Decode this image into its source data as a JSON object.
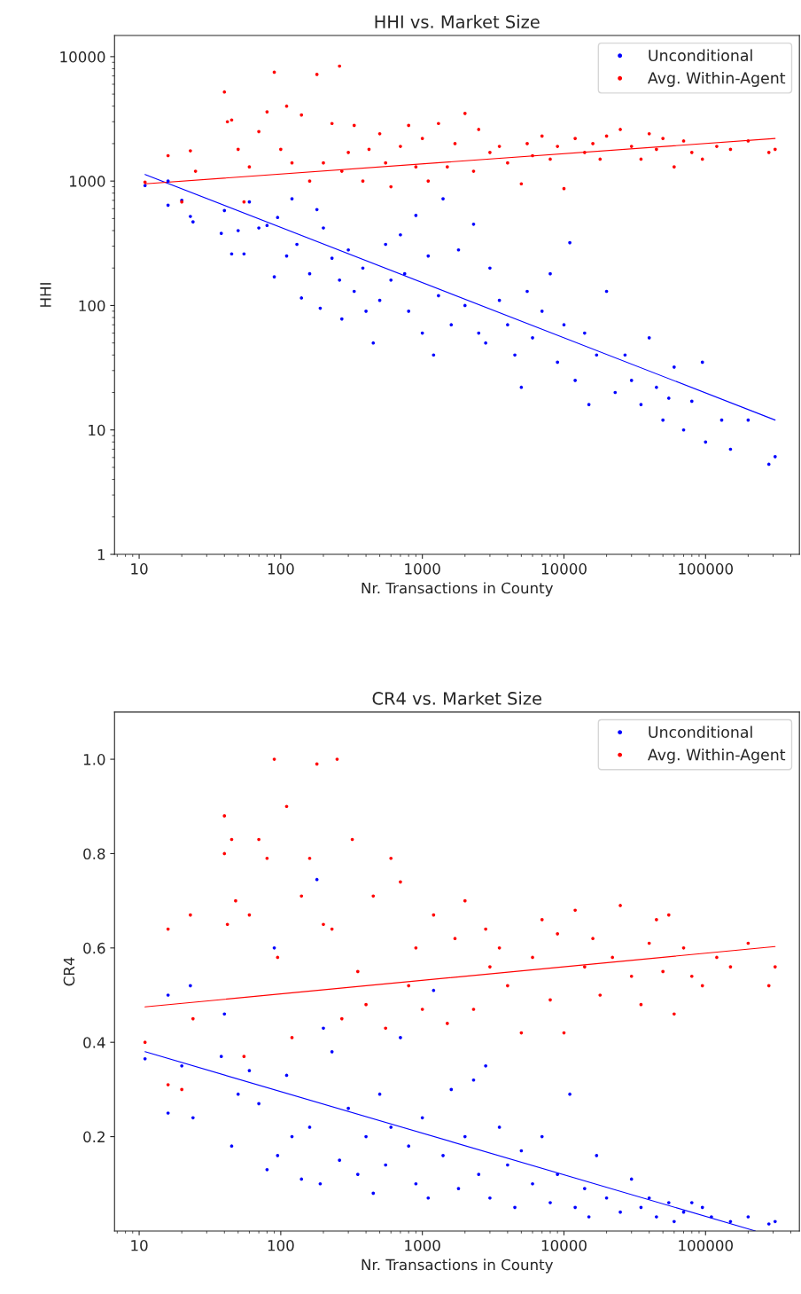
{
  "chart_data": [
    {
      "type": "scatter",
      "title": "HHI vs. Market Size",
      "xlabel": "Nr. Transactions in County",
      "ylabel": "HHI",
      "log": "xy",
      "xlim": [
        6.7,
        460000
      ],
      "ylim": [
        1,
        14800
      ],
      "xticks": [
        10,
        100,
        1000,
        10000,
        100000
      ],
      "yticks": [
        1,
        10,
        100,
        1000,
        10000
      ],
      "legend": "top right",
      "marker": "circle",
      "grid": false,
      "series": [
        {
          "name": "Unconditional",
          "color": "#0000ff",
          "x": [
            11,
            16,
            16,
            20,
            23,
            24,
            38,
            40,
            45,
            50,
            55,
            60,
            70,
            80,
            90,
            95,
            110,
            120,
            130,
            140,
            160,
            180,
            190,
            200,
            230,
            260,
            270,
            300,
            330,
            380,
            400,
            450,
            500,
            550,
            600,
            700,
            750,
            800,
            900,
            1000,
            1100,
            1200,
            1300,
            1400,
            1600,
            1800,
            2000,
            2300,
            2500,
            2800,
            3000,
            3500,
            4000,
            4500,
            5000,
            5500,
            6000,
            7000,
            8000,
            9000,
            10000,
            11000,
            12000,
            14000,
            15000,
            17000,
            20000,
            23000,
            27000,
            30000,
            35000,
            40000,
            45000,
            50000,
            55000,
            60000,
            70000,
            80000,
            95000,
            100000,
            130000,
            150000,
            200000,
            280000,
            310000
          ],
          "values": [
            920,
            1000,
            640,
            700,
            520,
            470,
            380,
            580,
            260,
            400,
            260,
            680,
            420,
            440,
            170,
            510,
            250,
            720,
            310,
            115,
            180,
            590,
            95,
            420,
            240,
            160,
            78,
            280,
            130,
            200,
            90,
            50,
            110,
            310,
            160,
            370,
            180,
            90,
            530,
            60,
            250,
            40,
            120,
            720,
            70,
            280,
            100,
            450,
            60,
            50,
            200,
            110,
            70,
            40,
            22,
            130,
            55,
            90,
            180,
            35,
            70,
            320,
            25,
            60,
            16,
            40,
            130,
            20,
            40,
            25,
            16,
            55,
            22,
            12,
            18,
            32,
            10,
            17,
            35,
            8,
            12,
            7,
            12,
            5.3,
            6.1
          ]
        },
        {
          "name": "Avg. Within-Agent",
          "color": "#ff0000",
          "x": [
            11,
            16,
            20,
            23,
            25,
            40,
            42,
            45,
            50,
            55,
            60,
            70,
            80,
            90,
            100,
            110,
            120,
            140,
            160,
            180,
            200,
            230,
            260,
            270,
            300,
            330,
            380,
            420,
            500,
            550,
            600,
            700,
            800,
            900,
            1000,
            1100,
            1300,
            1500,
            1700,
            2000,
            2300,
            2500,
            3000,
            3500,
            4000,
            5000,
            5500,
            6000,
            7000,
            8000,
            9000,
            10000,
            12000,
            14000,
            16000,
            18000,
            20000,
            25000,
            30000,
            35000,
            40000,
            45000,
            50000,
            60000,
            70000,
            80000,
            95000,
            120000,
            150000,
            200000,
            280000,
            310000
          ],
          "values": [
            980,
            1600,
            680,
            1750,
            1200,
            5200,
            3000,
            3100,
            1800,
            680,
            1300,
            2500,
            3600,
            7500,
            1800,
            4000,
            1400,
            3400,
            1000,
            7200,
            1400,
            2900,
            8400,
            1200,
            1700,
            2800,
            1000,
            1800,
            2400,
            1400,
            900,
            1900,
            2800,
            1300,
            2200,
            1000,
            2900,
            1300,
            2000,
            3500,
            1200,
            2600,
            1700,
            1900,
            1400,
            950,
            2000,
            1600,
            2300,
            1500,
            1900,
            870,
            2200,
            1700,
            2000,
            1500,
            2300,
            2600,
            1900,
            1500,
            2400,
            1800,
            2200,
            1300,
            2100,
            1700,
            1500,
            1900,
            1800,
            2100,
            1700,
            1800
          ]
        },
        {
          "type": "line",
          "marker": "none",
          "color": "#0000ff",
          "x": [
            11,
            310000
          ],
          "values": [
            1130,
            12
          ]
        },
        {
          "type": "line",
          "marker": "none",
          "color": "#ff0000",
          "x": [
            11,
            310000
          ],
          "values": [
            950,
            2200
          ]
        }
      ]
    },
    {
      "type": "scatter",
      "title": "CR4 vs. Market Size",
      "xlabel": "Nr. Transactions in County",
      "ylabel": "CR4",
      "log": "x",
      "xlim": [
        6.7,
        460000
      ],
      "ylim": [
        0,
        1.1
      ],
      "xticks": [
        10,
        100,
        1000,
        10000,
        100000
      ],
      "yticks": [
        0.2,
        0.4,
        0.6,
        0.8,
        {
          "value": 1,
          "label": "1.0"
        }
      ],
      "legend": "top right",
      "marker": "circle",
      "grid": false,
      "series": [
        {
          "name": "Unconditional",
          "color": "#0000ff",
          "x": [
            11,
            16,
            16,
            20,
            23,
            24,
            38,
            40,
            45,
            50,
            60,
            70,
            80,
            90,
            95,
            110,
            120,
            140,
            160,
            180,
            190,
            200,
            230,
            260,
            300,
            350,
            400,
            450,
            500,
            550,
            600,
            700,
            800,
            900,
            1000,
            1100,
            1200,
            1400,
            1600,
            1800,
            2000,
            2300,
            2500,
            2800,
            3000,
            3500,
            4000,
            4500,
            5000,
            6000,
            7000,
            8000,
            9000,
            11000,
            12000,
            14000,
            15000,
            17000,
            20000,
            25000,
            30000,
            35000,
            40000,
            45000,
            55000,
            60000,
            70000,
            80000,
            95000,
            110000,
            150000,
            200000,
            280000,
            310000
          ],
          "values": [
            0.365,
            0.25,
            0.5,
            0.35,
            0.52,
            0.24,
            0.37,
            0.46,
            0.18,
            0.29,
            0.34,
            0.27,
            0.13,
            0.6,
            0.16,
            0.33,
            0.2,
            0.11,
            0.22,
            0.745,
            0.1,
            0.43,
            0.38,
            0.15,
            0.26,
            0.12,
            0.2,
            0.08,
            0.29,
            0.14,
            0.22,
            0.41,
            0.18,
            0.1,
            0.24,
            0.07,
            0.51,
            0.16,
            0.3,
            0.09,
            0.2,
            0.32,
            0.12,
            0.35,
            0.07,
            0.22,
            0.14,
            0.05,
            0.17,
            0.1,
            0.2,
            0.06,
            0.12,
            0.29,
            0.05,
            0.09,
            0.03,
            0.16,
            0.07,
            0.04,
            0.11,
            0.05,
            0.07,
            0.03,
            0.06,
            0.02,
            0.04,
            0.06,
            0.05,
            0.03,
            0.02,
            0.03,
            0.015,
            0.02
          ]
        },
        {
          "name": "Avg. Within-Agent",
          "color": "#ff0000",
          "x": [
            11,
            16,
            16,
            20,
            23,
            24,
            40,
            40,
            42,
            45,
            48,
            55,
            60,
            70,
            80,
            90,
            95,
            110,
            120,
            140,
            160,
            180,
            200,
            230,
            250,
            270,
            320,
            350,
            400,
            450,
            550,
            600,
            700,
            800,
            900,
            1000,
            1200,
            1500,
            1700,
            2000,
            2300,
            2800,
            3000,
            3500,
            4000,
            5000,
            6000,
            7000,
            8000,
            9000,
            10000,
            12000,
            14000,
            16000,
            18000,
            22000,
            25000,
            30000,
            35000,
            40000,
            45000,
            50000,
            55000,
            60000,
            70000,
            80000,
            95000,
            120000,
            150000,
            200000,
            280000,
            310000
          ],
          "values": [
            0.4,
            0.64,
            0.31,
            0.3,
            0.67,
            0.45,
            0.88,
            0.8,
            0.65,
            0.83,
            0.7,
            0.37,
            0.67,
            0.83,
            0.79,
            1.0,
            0.58,
            0.9,
            0.41,
            0.71,
            0.79,
            0.99,
            0.65,
            0.64,
            1.0,
            0.45,
            0.83,
            0.55,
            0.48,
            0.71,
            0.43,
            0.79,
            0.74,
            0.52,
            0.6,
            0.47,
            0.67,
            0.44,
            0.62,
            0.7,
            0.47,
            0.64,
            0.56,
            0.6,
            0.52,
            0.42,
            0.58,
            0.66,
            0.49,
            0.63,
            0.42,
            0.68,
            0.56,
            0.62,
            0.5,
            0.58,
            0.69,
            0.54,
            0.48,
            0.61,
            0.66,
            0.55,
            0.67,
            0.46,
            0.6,
            0.54,
            0.52,
            0.58,
            0.56,
            0.61,
            0.52,
            0.56
          ]
        },
        {
          "type": "line",
          "marker": "none",
          "color": "#0000ff",
          "x": [
            11,
            225000
          ],
          "values": [
            0.38,
            0
          ]
        },
        {
          "type": "line",
          "marker": "none",
          "color": "#ff0000",
          "x": [
            11,
            310000
          ],
          "values": [
            0.475,
            0.603
          ]
        }
      ]
    }
  ]
}
